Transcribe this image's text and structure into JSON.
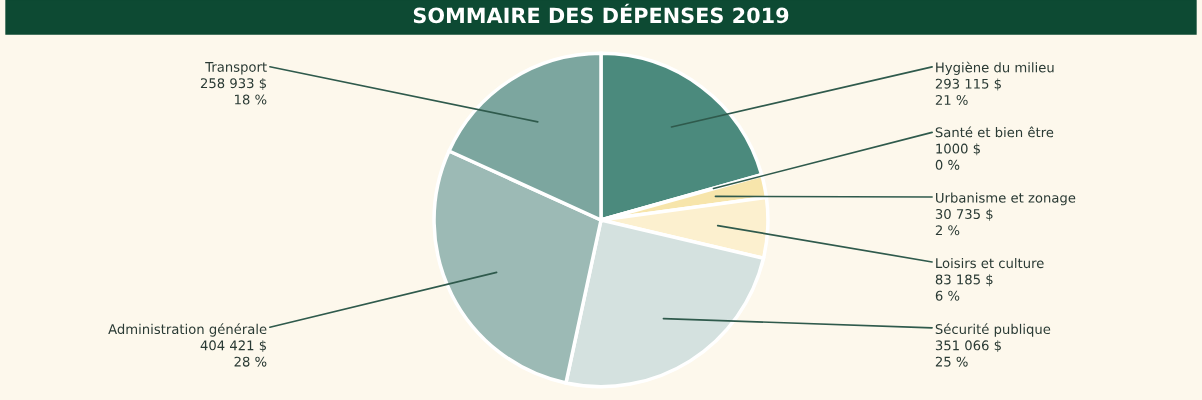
{
  "chart_data": {
    "type": "pie",
    "title": "SOMMAIRE DES DÉPENSES 2019",
    "categories": [
      "Hygiène du milieu",
      "Santé et bien être",
      "Urbanisme et zonage",
      "Loisirs et culture",
      "Sécurité publique",
      "Administration générale",
      "Transport"
    ],
    "values": [
      293115,
      1000,
      30735,
      83185,
      351066,
      404421,
      258933
    ],
    "value_labels": [
      "293 115 $\n21 %",
      "1000 $\n0 %",
      "30 735 $\n2 %",
      "83 185 $\n6 %",
      "351 066 $\n25 %",
      "404 421 $\n28 %",
      "258 933 $\n18 %"
    ],
    "colors": [
      "#4b8a7d",
      "#f3d67c",
      "#f7e5ab",
      "#fcf0cf",
      "#d4e1df",
      "#9cbab5",
      "#7ca69f"
    ],
    "legend": false
  }
}
